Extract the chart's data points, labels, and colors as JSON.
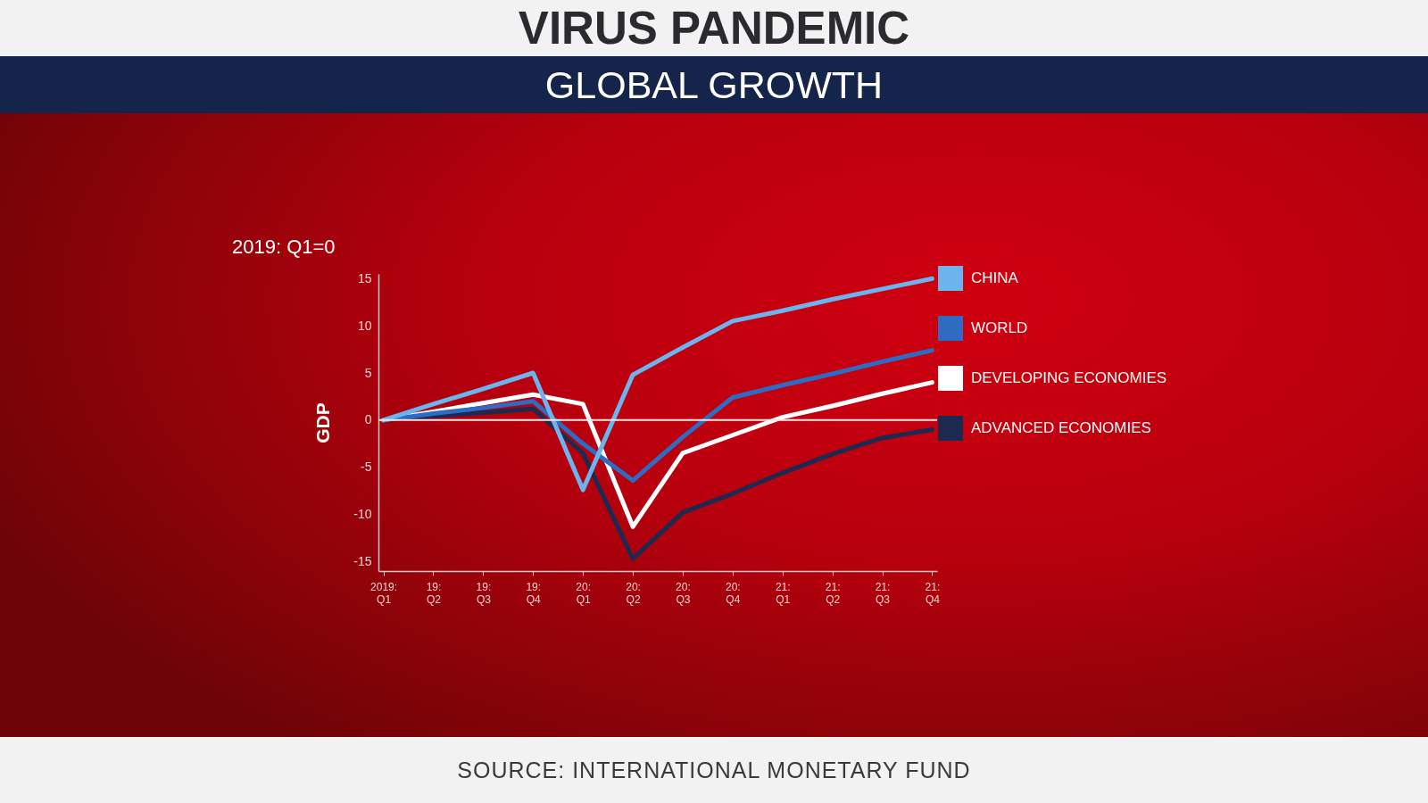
{
  "chart_data": {
    "type": "line",
    "title": "VIRUS PANDEMIC",
    "subtitle": "GLOBAL GROWTH",
    "ylabel": "GDP",
    "annotations": [
      "2019: Q1=0",
      "SOURCE: INTERNATIONAL MONETARY FUND"
    ],
    "categories": [
      "2019: Q1",
      "19: Q2",
      "19: Q3",
      "19: Q4",
      "20: Q1",
      "20: Q2",
      "20: Q3",
      "20: Q4",
      "21: Q1",
      "21: Q2",
      "21: Q3",
      "21: Q4"
    ],
    "series": [
      {
        "name": "CHINA",
        "color": "#6cb4ee",
        "values": [
          0,
          1.7,
          3.3,
          5,
          -7.4,
          4.8,
          7.7,
          10.5,
          11.6,
          12.8,
          13.9,
          15
        ]
      },
      {
        "name": "WORLD",
        "color": "#2e6bc2",
        "values": [
          0,
          0.7,
          1.3,
          2,
          -2.5,
          -6.4,
          -1.8,
          2.4,
          3.7,
          4.9,
          6.2,
          7.4
        ]
      },
      {
        "name": "DEVELOPING ECONOMIES",
        "color": "#ffffff",
        "values": [
          0,
          0.9,
          1.8,
          2.7,
          1.7,
          -11.3,
          -3.5,
          -1.6,
          0.3,
          1.5,
          2.8,
          4
        ]
      },
      {
        "name": "ADVANCED ECONOMIES",
        "color": "#1c2a50",
        "values": [
          0,
          0.4,
          0.8,
          1.2,
          -3.5,
          -14.7,
          -9.8,
          -7.8,
          -5.6,
          -3.6,
          -1.9,
          -1
        ]
      }
    ],
    "ylim": [
      -16,
      15.5
    ],
    "yticks": [
      -15,
      -10,
      -5,
      0,
      5,
      10,
      15
    ],
    "grid": false,
    "legend": "right",
    "marker": "none",
    "line_style": "solid",
    "ref_lines": [
      {
        "axis": "y",
        "value": 0,
        "color": "#f6e4e4"
      }
    ]
  }
}
